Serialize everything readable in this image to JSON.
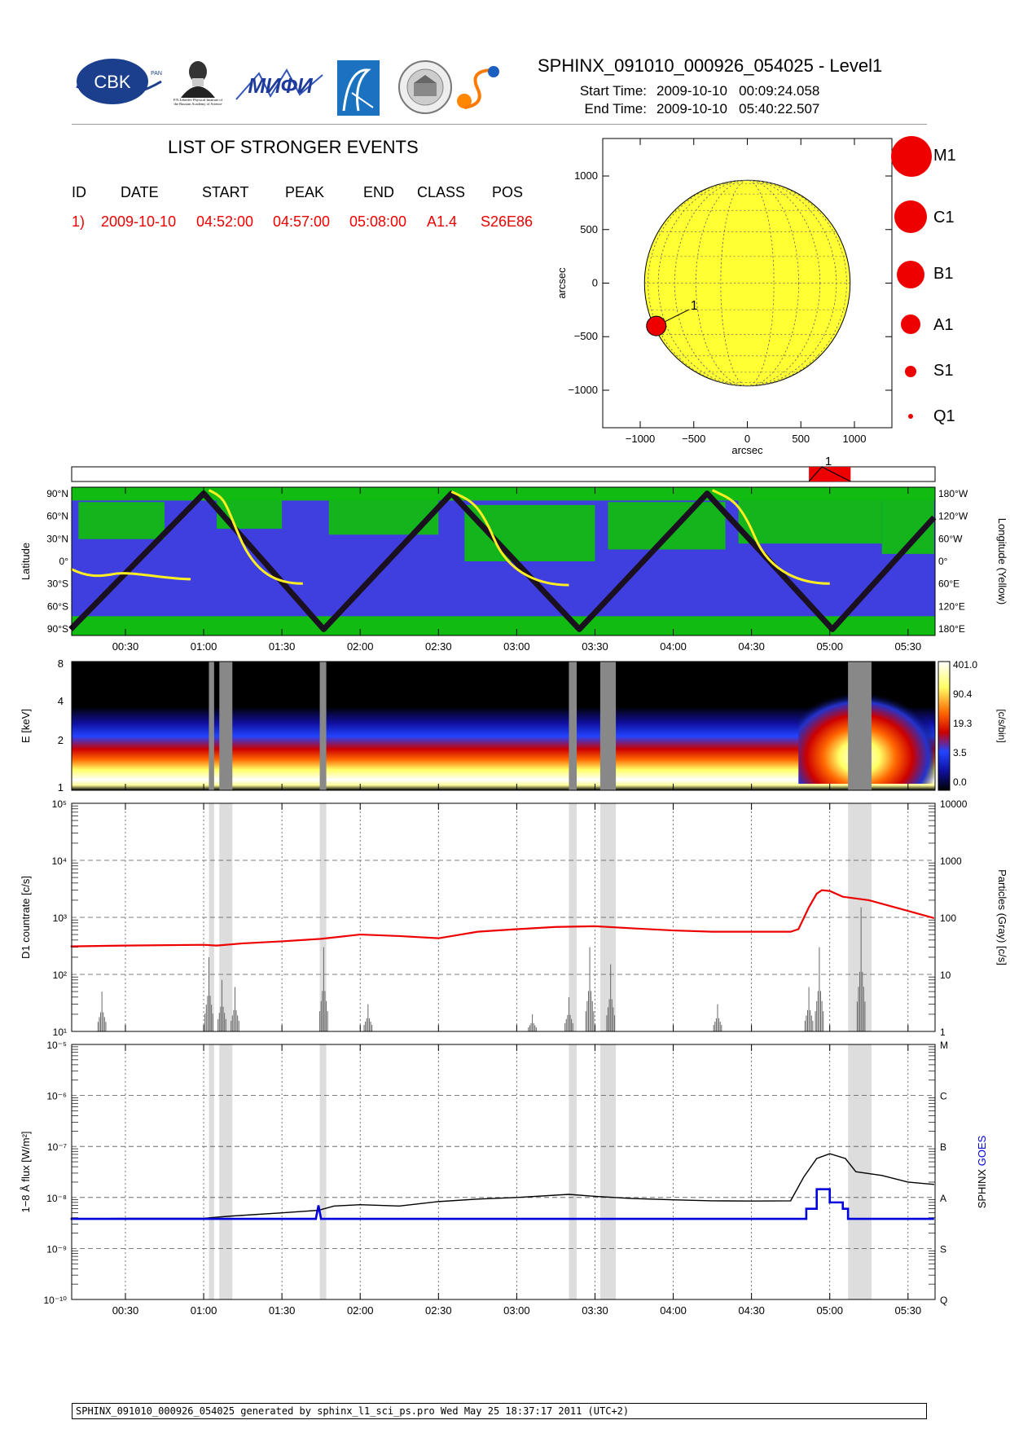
{
  "header": {
    "title": "SPHINX_091010_000926_054025 - Level1",
    "start_label": "Start Time:",
    "start_value": "2009-10-10   00:09:24.058",
    "end_label": "End Time:",
    "end_value": "2009-10-10   05:40:22.507",
    "logos": [
      "CBK PAN",
      "P.N.Lebedev Physical Institute of the Russian Academy of Science",
      "MIFI",
      "logo-4",
      "logo-5",
      "logo-6"
    ],
    "logo_text_cbk": "CBK",
    "logo_text_cbk_small": "PAN",
    "logo_text_lebedev": "P.N.Lebedev Physical Institute of the Russian Academy of Science",
    "logo_text_mifi": "МИФИ"
  },
  "events": {
    "title": "LIST OF STRONGER EVENTS",
    "columns": [
      "ID",
      "DATE",
      "START",
      "PEAK",
      "END",
      "CLASS",
      "POS"
    ],
    "rows": [
      {
        "id": "1)",
        "date": "2009-10-10",
        "start": "04:52:00",
        "peak": "04:57:00",
        "end": "05:08:00",
        "class": "A1.4",
        "pos": "S26E86"
      }
    ]
  },
  "sun_map": {
    "xlabel": "arcsec",
    "ylabel": "arcsec",
    "xticks": [
      "−1000",
      "−500",
      "0",
      "500",
      "1000"
    ],
    "yticks": [
      "1000",
      "500",
      "0",
      "−500",
      "−1000"
    ],
    "xlim": [
      -1350,
      1350
    ],
    "ylim": [
      -1350,
      1350
    ],
    "disk_radius": 960,
    "disk_color": "#ffff33",
    "event_marker": {
      "label": "1",
      "x": -850,
      "y": -400,
      "color": "#ee0000"
    }
  },
  "size_key": [
    {
      "label": "M1",
      "size": 22
    },
    {
      "label": "C1",
      "size": 18
    },
    {
      "label": "B1",
      "size": 15
    },
    {
      "label": "A1",
      "size": 11
    },
    {
      "label": "S1",
      "size": 7
    },
    {
      "label": "Q1",
      "size": 3
    }
  ],
  "time_axis": {
    "start": "00:09:24",
    "end": "05:40:22",
    "tick_labels": [
      "00:30",
      "01:00",
      "01:30",
      "02:00",
      "02:30",
      "03:00",
      "03:30",
      "04:00",
      "04:30",
      "05:00",
      "05:30"
    ]
  },
  "event_bar": {
    "label": "1",
    "start": "04:52:00",
    "peak": "04:57:00",
    "end": "05:08:00",
    "color": "#ee0000"
  },
  "orbit_panel": {
    "ylabel_left": "Latitude",
    "ylabel_right": "Longitude (Yellow)",
    "lat_ticks": [
      "90°N",
      "60°N",
      "30°N",
      "0°",
      "30°S",
      "60°S",
      "90°S"
    ],
    "lon_ticks": [
      "180°W",
      "120°W",
      "60°W",
      "0°",
      "60°E",
      "120°E",
      "180°E"
    ],
    "colors": {
      "background": "#3f3fdf",
      "green": "#11bb11",
      "track": "#1a1020",
      "lon": "#ffee22"
    }
  },
  "spectrogram": {
    "ylabel": "E [keV]",
    "yticks": [
      "8",
      "4",
      "2",
      "1"
    ],
    "colorbar_ticks": [
      "401.0",
      "90.4",
      "19.3",
      "3.5",
      "0.0"
    ],
    "colorbar_label": "[c/s/bin]"
  },
  "gaps": [
    [
      "01:02:00",
      "01:04:00"
    ],
    [
      "01:06:00",
      "01:11:00"
    ],
    [
      "01:44:30",
      "01:47:00"
    ],
    [
      "03:20:00",
      "03:23:00"
    ],
    [
      "03:32:00",
      "03:38:00"
    ],
    [
      "05:07:00",
      "05:16:00"
    ]
  ],
  "chart_data": [
    {
      "type": "line",
      "title": "",
      "ylabel": "D1 countrate [c/s]",
      "ylabel_right": "Particles (Gray) [c/s]",
      "ylog": true,
      "ylim": [
        10,
        100000
      ],
      "yticks_left": [
        "10¹",
        "10²",
        "10³",
        "10⁴",
        "10⁵"
      ],
      "yticks_right": [
        "1",
        "10",
        "100",
        "1000",
        "10000"
      ],
      "series": [
        {
          "color": "#ee0000",
          "x": [
            "00:09",
            "00:30",
            "01:00",
            "01:05",
            "01:15",
            "01:30",
            "01:45",
            "02:00",
            "02:15",
            "02:30",
            "02:45",
            "03:00",
            "03:15",
            "03:30",
            "03:45",
            "04:00",
            "04:15",
            "04:30",
            "04:45",
            "04:48",
            "04:52",
            "04:55",
            "04:57",
            "05:00",
            "05:05",
            "05:15",
            "05:25",
            "05:40"
          ],
          "values": [
            310,
            320,
            330,
            320,
            350,
            380,
            420,
            500,
            470,
            430,
            560,
            620,
            680,
            700,
            640,
            590,
            560,
            560,
            560,
            620,
            1500,
            2600,
            3000,
            2900,
            2300,
            2000,
            1500,
            970
          ]
        },
        {
          "color": "#666666",
          "axis": "right",
          "x": [
            "00:21",
            "01:02",
            "01:07",
            "01:12",
            "01:46",
            "02:03",
            "03:06",
            "03:20",
            "03:28",
            "03:36",
            "04:17",
            "04:52",
            "04:56",
            "05:12"
          ],
          "values": [
            5,
            20,
            8,
            6,
            30,
            3,
            2,
            4,
            30,
            15,
            3,
            6,
            30,
            150
          ]
        }
      ]
    },
    {
      "type": "line",
      "title": "",
      "ylabel": "1−8 Å flux [W/m²]",
      "ylabel_right_a": "SPHINX",
      "ylabel_right_b": "GOES",
      "ylog": true,
      "ylim": [
        1e-10,
        1e-05
      ],
      "yticks_left": [
        "10⁻¹⁰",
        "10⁻⁹",
        "10⁻⁸",
        "10⁻⁷",
        "10⁻⁶",
        "10⁻⁵"
      ],
      "class_ticks": [
        "Q",
        "S",
        "A",
        "B",
        "C",
        "M"
      ],
      "series": [
        {
          "name": "SPHINX",
          "color": "#000000",
          "x": [
            "00:09",
            "00:30",
            "01:00",
            "01:10",
            "01:30",
            "01:44",
            "01:50",
            "02:00",
            "02:15",
            "02:30",
            "02:45",
            "03:00",
            "03:20",
            "03:30",
            "03:45",
            "04:00",
            "04:15",
            "04:30",
            "04:45",
            "04:50",
            "04:55",
            "05:00",
            "05:06",
            "05:10",
            "05:20",
            "05:30",
            "05:40"
          ],
          "values": [
            3.8e-09,
            3.9e-09,
            3.9e-09,
            4.3e-09,
            5e-09,
            5.6e-09,
            6.8e-09,
            7.2e-09,
            6.8e-09,
            8.3e-09,
            9.3e-09,
            1e-08,
            1.15e-08,
            1.05e-08,
            9.5e-09,
            9e-09,
            8.6e-09,
            8.5e-09,
            8.6e-09,
            2.5e-08,
            5.8e-08,
            7.2e-08,
            5.8e-08,
            3.2e-08,
            2.7e-08,
            2e-08,
            1.8e-08
          ]
        },
        {
          "name": "GOES",
          "color": "#0000dd",
          "x": [
            "00:09",
            "01:43",
            "01:44",
            "01:45",
            "04:51",
            "04:51",
            "04:55",
            "04:55",
            "05:00",
            "05:00",
            "05:05",
            "05:05",
            "05:07",
            "05:07",
            "05:40"
          ],
          "values": [
            3.8e-09,
            3.8e-09,
            7e-09,
            3.8e-09,
            3.8e-09,
            6e-09,
            6e-09,
            1.45e-08,
            1.45e-08,
            8e-09,
            8e-09,
            6e-09,
            6e-09,
            3.8e-09,
            3.8e-09
          ]
        }
      ]
    }
  ],
  "footer": "SPHINX_091010_000926_054025 generated by sphinx_l1_sci_ps.pro Wed May 25 18:37:17 2011 (UTC+2)"
}
